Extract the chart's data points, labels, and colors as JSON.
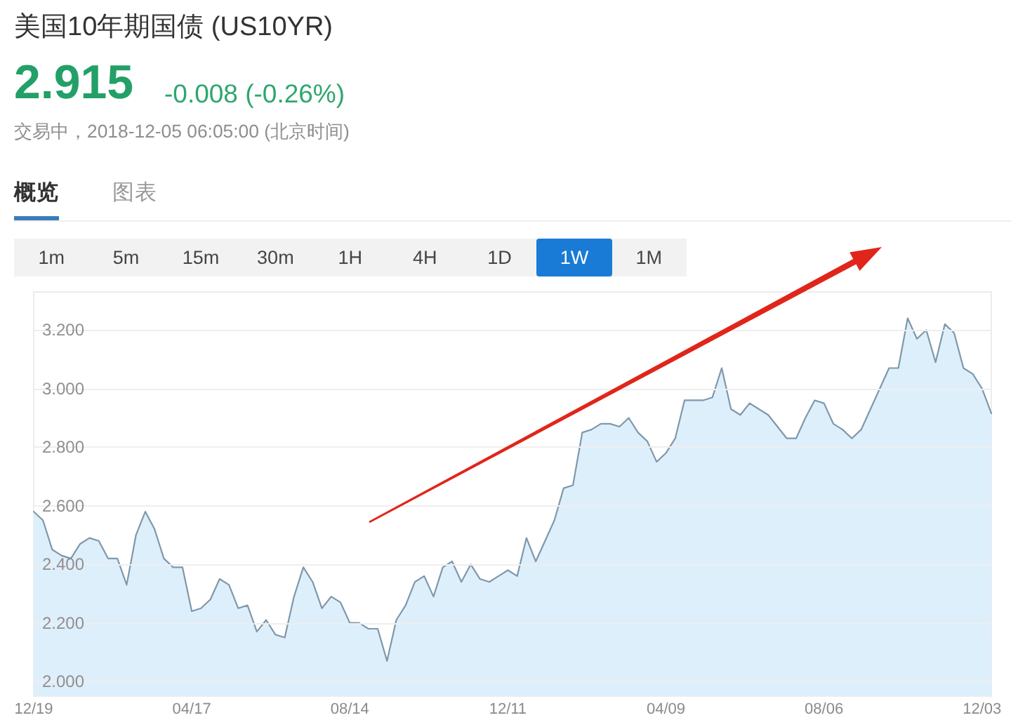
{
  "chart_data": {
    "type": "area",
    "title": "美国10年期国债 (US10YR)",
    "subtitle": "交易中，2018-12-05 06:05:00 (北京时间)",
    "annotations": [
      "2.915",
      "-0.008 (-0.26%)",
      "概览",
      "图表",
      "1m",
      "5m",
      "15m",
      "30m",
      "1H",
      "4H",
      "1D",
      "1W",
      "1M"
    ],
    "categories": [
      "12/19",
      null,
      null,
      null,
      null,
      null,
      null,
      null,
      null,
      null,
      null,
      null,
      null,
      null,
      null,
      null,
      null,
      "04/17",
      null,
      null,
      null,
      null,
      null,
      null,
      null,
      null,
      null,
      null,
      null,
      null,
      null,
      null,
      null,
      null,
      "08/14",
      null,
      null,
      null,
      null,
      null,
      null,
      null,
      null,
      null,
      null,
      null,
      null,
      null,
      null,
      null,
      null,
      "12/11",
      null,
      null,
      null,
      null,
      null,
      null,
      null,
      null,
      null,
      null,
      null,
      null,
      null,
      null,
      null,
      null,
      "04/09",
      null,
      null,
      null,
      null,
      null,
      null,
      null,
      null,
      null,
      null,
      null,
      null,
      null,
      null,
      null,
      null,
      "08/06",
      null,
      null,
      null,
      null,
      null,
      null,
      null,
      null,
      null,
      null,
      null,
      null,
      null,
      null,
      null,
      null,
      "12/03",
      null
    ],
    "values": [
      2.58,
      2.55,
      2.45,
      2.43,
      2.42,
      2.47,
      2.49,
      2.48,
      2.42,
      2.42,
      2.33,
      2.5,
      2.58,
      2.52,
      2.42,
      2.39,
      2.39,
      2.24,
      2.25,
      2.28,
      2.35,
      2.33,
      2.25,
      2.26,
      2.17,
      2.21,
      2.16,
      2.15,
      2.29,
      2.39,
      2.34,
      2.25,
      2.29,
      2.27,
      2.2,
      2.2,
      2.18,
      2.18,
      2.07,
      2.21,
      2.26,
      2.34,
      2.36,
      2.29,
      2.39,
      2.41,
      2.34,
      2.4,
      2.35,
      2.34,
      2.36,
      2.38,
      2.36,
      2.49,
      2.41,
      2.48,
      2.55,
      2.66,
      2.67,
      2.85,
      2.86,
      2.88,
      2.88,
      2.87,
      2.9,
      2.85,
      2.82,
      2.75,
      2.78,
      2.83,
      2.96,
      2.96,
      2.96,
      2.97,
      3.07,
      2.93,
      2.91,
      2.95,
      2.93,
      2.91,
      2.87,
      2.83,
      2.83,
      2.9,
      2.96,
      2.95,
      2.88,
      2.86,
      2.83,
      2.86,
      2.93,
      3.0,
      3.07,
      3.07,
      3.24,
      3.17,
      3.2,
      3.09,
      3.22,
      3.19,
      3.07,
      3.05,
      3.0,
      2.915
    ],
    "color": "#7f98ab",
    "ylim": [
      1.95,
      3.33
    ],
    "yticks": [
      {
        "value": 2,
        "label": "2.000"
      },
      {
        "value": 2.2,
        "label": "2.200"
      },
      {
        "value": 2.4,
        "label": "2.400"
      },
      {
        "value": 2.6,
        "label": "2.600"
      },
      {
        "value": 2.8,
        "label": "2.800"
      },
      {
        "value": 3,
        "label": "3.000"
      },
      {
        "value": 3.2,
        "label": "3.200"
      }
    ],
    "grid": "y"
  }
}
